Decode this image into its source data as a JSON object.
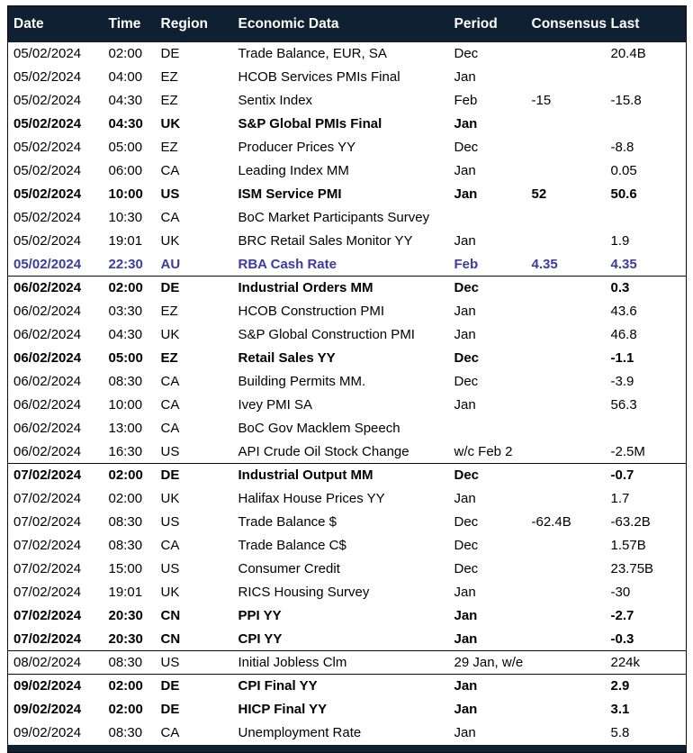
{
  "colors": {
    "header_bg": "#102033",
    "header_text": "#ffffff",
    "body_text": "#000000",
    "accent_row_text": "#3c3c9e",
    "border": "#0d0d0d",
    "background": "#ffffff"
  },
  "table": {
    "columns": [
      {
        "key": "date",
        "label": "Date"
      },
      {
        "key": "time",
        "label": "Time"
      },
      {
        "key": "region",
        "label": "Region"
      },
      {
        "key": "event",
        "label": "Economic Data"
      },
      {
        "key": "period",
        "label": "Period"
      },
      {
        "key": "consensus",
        "label": "Consensus"
      },
      {
        "key": "last",
        "label": "Last"
      }
    ],
    "rows": [
      {
        "date": "05/02/2024",
        "time": "02:00",
        "region": "DE",
        "event": "Trade Balance, EUR, SA",
        "period": "Dec",
        "consensus": "",
        "last": "20.4B",
        "bold": false,
        "accent": false,
        "separator_above": false
      },
      {
        "date": "05/02/2024",
        "time": "04:00",
        "region": "EZ",
        "event": "HCOB Services PMIs Final",
        "period": "Jan",
        "consensus": "",
        "last": "",
        "bold": false,
        "accent": false,
        "separator_above": false
      },
      {
        "date": "05/02/2024",
        "time": "04:30",
        "region": "EZ",
        "event": "Sentix Index",
        "period": "Feb",
        "consensus": "-15",
        "last": "-15.8",
        "bold": false,
        "accent": false,
        "separator_above": false
      },
      {
        "date": "05/02/2024",
        "time": "04:30",
        "region": "UK",
        "event": "S&P Global PMIs Final",
        "period": "Jan",
        "consensus": "",
        "last": "",
        "bold": true,
        "accent": false,
        "separator_above": false
      },
      {
        "date": "05/02/2024",
        "time": "05:00",
        "region": "EZ",
        "event": "Producer Prices YY",
        "period": "Dec",
        "consensus": "",
        "last": "-8.8",
        "bold": false,
        "accent": false,
        "separator_above": false
      },
      {
        "date": "05/02/2024",
        "time": "06:00",
        "region": "CA",
        "event": "Leading Index MM",
        "period": "Jan",
        "consensus": "",
        "last": "0.05",
        "bold": false,
        "accent": false,
        "separator_above": false
      },
      {
        "date": "05/02/2024",
        "time": "10:00",
        "region": "US",
        "event": "ISM Service PMI",
        "period": "Jan",
        "consensus": "52",
        "last": "50.6",
        "bold": true,
        "accent": false,
        "separator_above": false
      },
      {
        "date": "05/02/2024",
        "time": "10:30",
        "region": "CA",
        "event": "BoC Market Participants Survey",
        "period": "",
        "consensus": "",
        "last": "",
        "bold": false,
        "accent": false,
        "separator_above": false
      },
      {
        "date": "05/02/2024",
        "time": "19:01",
        "region": "UK",
        "event": "BRC Retail Sales Monitor YY",
        "period": "Jan",
        "consensus": "",
        "last": "1.9",
        "bold": false,
        "accent": false,
        "separator_above": false
      },
      {
        "date": "05/02/2024",
        "time": "22:30",
        "region": "AU",
        "event": "RBA Cash Rate",
        "period": "Feb",
        "consensus": "4.35",
        "last": "4.35",
        "bold": true,
        "accent": true,
        "separator_above": false
      },
      {
        "date": "06/02/2024",
        "time": "02:00",
        "region": "DE",
        "event": "Industrial Orders MM",
        "period": "Dec",
        "consensus": "",
        "last": "0.3",
        "bold": true,
        "accent": false,
        "separator_above": true
      },
      {
        "date": "06/02/2024",
        "time": "03:30",
        "region": "EZ",
        "event": "HCOB Construction PMI",
        "period": "Jan",
        "consensus": "",
        "last": "43.6",
        "bold": false,
        "accent": false,
        "separator_above": false
      },
      {
        "date": "06/02/2024",
        "time": "04:30",
        "region": "UK",
        "event": "S&P Global Construction PMI",
        "period": "Jan",
        "consensus": "",
        "last": "46.8",
        "bold": false,
        "accent": false,
        "separator_above": false
      },
      {
        "date": "06/02/2024",
        "time": "05:00",
        "region": "EZ",
        "event": "Retail Sales YY",
        "period": "Dec",
        "consensus": "",
        "last": "-1.1",
        "bold": true,
        "accent": false,
        "separator_above": false
      },
      {
        "date": "06/02/2024",
        "time": "08:30",
        "region": "CA",
        "event": "Building Permits MM.",
        "period": "Dec",
        "consensus": "",
        "last": "-3.9",
        "bold": false,
        "accent": false,
        "separator_above": false
      },
      {
        "date": "06/02/2024",
        "time": "10:00",
        "region": "CA",
        "event": "Ivey PMI SA",
        "period": "Jan",
        "consensus": "",
        "last": "56.3",
        "bold": false,
        "accent": false,
        "separator_above": false
      },
      {
        "date": "06/02/2024",
        "time": "13:00",
        "region": "CA",
        "event": "BoC Gov Macklem Speech",
        "period": "",
        "consensus": "",
        "last": "",
        "bold": false,
        "accent": false,
        "separator_above": false
      },
      {
        "date": "06/02/2024",
        "time": "16:30",
        "region": "US",
        "event": "API Crude Oil Stock Change",
        "period": "w/c Feb 2",
        "consensus": "",
        "last": "-2.5M",
        "bold": false,
        "accent": false,
        "separator_above": false
      },
      {
        "date": "07/02/2024",
        "time": "02:00",
        "region": "DE",
        "event": "Industrial Output MM",
        "period": "Dec",
        "consensus": "",
        "last": "-0.7",
        "bold": true,
        "accent": false,
        "separator_above": true
      },
      {
        "date": "07/02/2024",
        "time": "02:00",
        "region": "UK",
        "event": "Halifax House Prices YY",
        "period": "Jan",
        "consensus": "",
        "last": "1.7",
        "bold": false,
        "accent": false,
        "separator_above": false
      },
      {
        "date": "07/02/2024",
        "time": "08:30",
        "region": "US",
        "event": "Trade Balance $",
        "period": "Dec",
        "consensus": "-62.4B",
        "last": "-63.2B",
        "bold": false,
        "accent": false,
        "separator_above": false
      },
      {
        "date": "07/02/2024",
        "time": "08:30",
        "region": "CA",
        "event": "Trade Balance C$",
        "period": "Dec",
        "consensus": "",
        "last": "1.57B",
        "bold": false,
        "accent": false,
        "separator_above": false
      },
      {
        "date": "07/02/2024",
        "time": "15:00",
        "region": "US",
        "event": "Consumer Credit",
        "period": "Dec",
        "consensus": "",
        "last": "23.75B",
        "bold": false,
        "accent": false,
        "separator_above": false
      },
      {
        "date": "07/02/2024",
        "time": "19:01",
        "region": "UK",
        "event": "RICS Housing Survey",
        "period": "Jan",
        "consensus": "",
        "last": "-30",
        "bold": false,
        "accent": false,
        "separator_above": false
      },
      {
        "date": "07/02/2024",
        "time": "20:30",
        "region": "CN",
        "event": "PPI YY",
        "period": "Jan",
        "consensus": "",
        "last": "-2.7",
        "bold": true,
        "accent": false,
        "separator_above": false
      },
      {
        "date": "07/02/2024",
        "time": "20:30",
        "region": "CN",
        "event": "CPI YY",
        "period": "Jan",
        "consensus": "",
        "last": "-0.3",
        "bold": true,
        "accent": false,
        "separator_above": false
      },
      {
        "date": "08/02/2024",
        "time": "08:30",
        "region": "US",
        "event": "Initial Jobless Clm",
        "period": "29 Jan, w/e",
        "consensus": "",
        "last": "224k",
        "bold": false,
        "accent": false,
        "separator_above": true
      },
      {
        "date": "09/02/2024",
        "time": "02:00",
        "region": "DE",
        "event": "CPI Final YY",
        "period": "Jan",
        "consensus": "",
        "last": "2.9",
        "bold": true,
        "accent": false,
        "separator_above": true
      },
      {
        "date": "09/02/2024",
        "time": "02:00",
        "region": "DE",
        "event": "HICP Final YY",
        "period": "Jan",
        "consensus": "",
        "last": "3.1",
        "bold": true,
        "accent": false,
        "separator_above": false
      },
      {
        "date": "09/02/2024",
        "time": "08:30",
        "region": "CA",
        "event": "Unemployment Rate",
        "period": "Jan",
        "consensus": "",
        "last": "5.8",
        "bold": false,
        "accent": false,
        "separator_above": false
      }
    ]
  }
}
